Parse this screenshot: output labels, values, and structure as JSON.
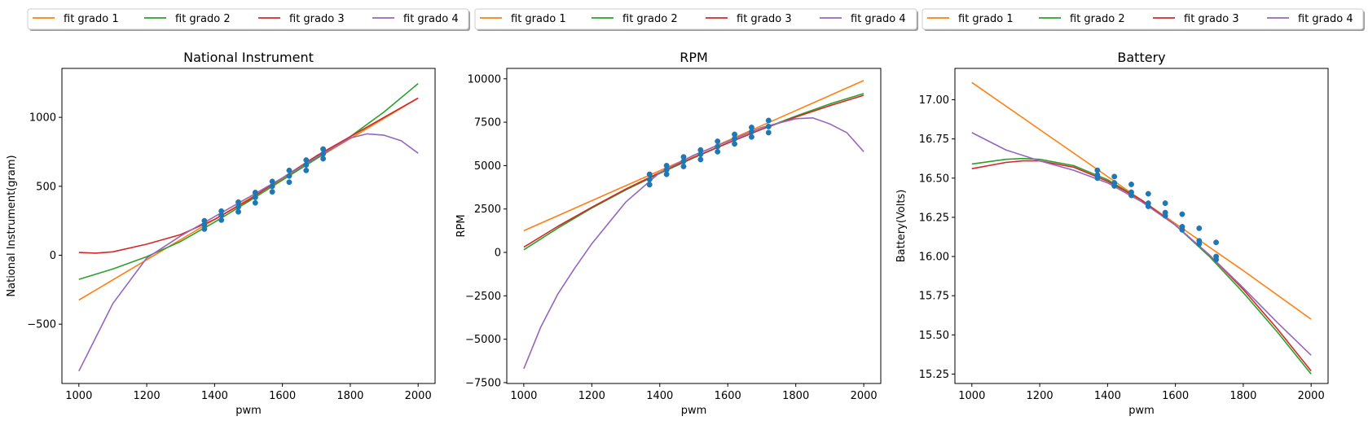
{
  "chart_data": [
    {
      "type": "line",
      "title": "National Instrument",
      "xlabel": "pwm",
      "ylabel": "National Instrument(gram)",
      "xlim": [
        950,
        2050
      ],
      "ylim": [
        -930,
        1355
      ],
      "xticks": [
        1000,
        1200,
        1400,
        1600,
        1800,
        2000
      ],
      "yticks": [
        -500,
        0,
        500,
        1000
      ],
      "grid": false,
      "legend": {
        "placement": "top",
        "columns": 4
      },
      "series": [
        {
          "name": "fit grado 1",
          "color": "#ff7f0e",
          "x": [
            1000,
            1200,
            1400,
            1600,
            1800,
            2000
          ],
          "y": [
            -325,
            -33,
            260,
            553,
            846,
            1140
          ]
        },
        {
          "name": "fit grado 2",
          "color": "#2ca02c",
          "x": [
            1000,
            1100,
            1200,
            1300,
            1400,
            1500,
            1600,
            1700,
            1800,
            1900,
            2000
          ],
          "y": [
            -175,
            -100,
            -10,
            100,
            240,
            390,
            545,
            700,
            860,
            1040,
            1245
          ]
        },
        {
          "name": "fit grado 3",
          "color": "#d62728",
          "x": [
            1000,
            1050,
            1100,
            1200,
            1300,
            1400,
            1500,
            1600,
            1700,
            1800,
            1900,
            2000
          ],
          "y": [
            20,
            15,
            25,
            80,
            150,
            260,
            400,
            560,
            720,
            860,
            1000,
            1140
          ]
        },
        {
          "name": "fit grado 4",
          "color": "#9467bd",
          "x": [
            1000,
            1100,
            1200,
            1300,
            1400,
            1500,
            1600,
            1700,
            1800,
            1850,
            1900,
            1950,
            2000
          ],
          "y": [
            -840,
            -350,
            -20,
            140,
            280,
            420,
            560,
            710,
            850,
            880,
            870,
            830,
            740
          ]
        },
        {
          "name": "",
          "kind": "scatter",
          "color": "#1f77b4",
          "x": [
            1370,
            1370,
            1370,
            1420,
            1420,
            1420,
            1470,
            1470,
            1470,
            1520,
            1520,
            1520,
            1570,
            1570,
            1570,
            1620,
            1620,
            1620,
            1670,
            1670,
            1670,
            1720,
            1720,
            1720
          ],
          "y": [
            190,
            220,
            250,
            255,
            290,
            320,
            315,
            350,
            385,
            380,
            420,
            455,
            460,
            500,
            535,
            530,
            575,
            615,
            615,
            655,
            690,
            700,
            735,
            770
          ]
        }
      ]
    },
    {
      "type": "line",
      "title": "RPM",
      "xlabel": "pwm",
      "ylabel": "RPM",
      "xlim": [
        950,
        2050
      ],
      "ylim": [
        -7550,
        10600
      ],
      "xticks": [
        1000,
        1200,
        1400,
        1600,
        1800,
        2000
      ],
      "yticks": [
        -7500,
        -5000,
        -2500,
        0,
        2500,
        5000,
        7500,
        10000
      ],
      "grid": false,
      "legend": {
        "placement": "top",
        "columns": 4
      },
      "series": [
        {
          "name": "fit grado 1",
          "color": "#ff7f0e",
          "x": [
            1000,
            1200,
            1400,
            1600,
            1800,
            2000
          ],
          "y": [
            1250,
            2980,
            4710,
            6440,
            8170,
            9900
          ]
        },
        {
          "name": "fit grado 2",
          "color": "#2ca02c",
          "x": [
            1000,
            1100,
            1200,
            1300,
            1400,
            1500,
            1600,
            1700,
            1800,
            1900,
            2000
          ],
          "y": [
            150,
            1400,
            2550,
            3600,
            4550,
            5450,
            6300,
            7100,
            7850,
            8550,
            9150
          ]
        },
        {
          "name": "fit grado 3",
          "color": "#d62728",
          "x": [
            1000,
            1100,
            1200,
            1300,
            1400,
            1500,
            1600,
            1700,
            1800,
            1900,
            2000
          ],
          "y": [
            300,
            1500,
            2600,
            3650,
            4600,
            5480,
            6300,
            7100,
            7800,
            8450,
            9050
          ]
        },
        {
          "name": "fit grado 4",
          "color": "#9467bd",
          "x": [
            1000,
            1050,
            1100,
            1150,
            1200,
            1300,
            1400,
            1500,
            1600,
            1700,
            1800,
            1850,
            1900,
            1950,
            2000
          ],
          "y": [
            -6700,
            -4300,
            -2400,
            -900,
            500,
            2900,
            4600,
            5600,
            6400,
            7200,
            7700,
            7750,
            7400,
            6900,
            5800
          ]
        },
        {
          "name": "",
          "kind": "scatter",
          "color": "#1f77b4",
          "x": [
            1370,
            1370,
            1370,
            1420,
            1420,
            1420,
            1470,
            1470,
            1470,
            1520,
            1520,
            1520,
            1570,
            1570,
            1570,
            1620,
            1620,
            1620,
            1670,
            1670,
            1670,
            1720,
            1720,
            1720
          ],
          "y": [
            3900,
            4200,
            4500,
            4500,
            4750,
            5000,
            4950,
            5250,
            5500,
            5350,
            5650,
            5900,
            5800,
            6100,
            6400,
            6250,
            6550,
            6800,
            6650,
            6950,
            7200,
            6900,
            7250,
            7600
          ]
        }
      ]
    },
    {
      "type": "line",
      "title": "Battery",
      "xlabel": "pwm",
      "ylabel": "Battery(Volts)",
      "xlim": [
        950,
        2050
      ],
      "ylim": [
        15.19,
        17.2
      ],
      "xticks": [
        1000,
        1200,
        1400,
        1600,
        1800,
        2000
      ],
      "yticks": [
        15.25,
        15.5,
        15.75,
        16.0,
        16.25,
        16.5,
        16.75,
        17.0
      ],
      "ytick_labels": [
        "15.25",
        "15.50",
        "15.75",
        "16.00",
        "16.25",
        "16.50",
        "16.75",
        "17.00"
      ],
      "grid": false,
      "legend": {
        "placement": "top",
        "columns": 4
      },
      "series": [
        {
          "name": "fit grado 1",
          "color": "#ff7f0e",
          "x": [
            1000,
            1200,
            1400,
            1600,
            1800,
            2000
          ],
          "y": [
            17.11,
            16.81,
            16.51,
            16.21,
            15.91,
            15.6
          ]
        },
        {
          "name": "fit grado 2",
          "color": "#2ca02c",
          "x": [
            1000,
            1100,
            1150,
            1200,
            1300,
            1400,
            1500,
            1600,
            1700,
            1800,
            1900,
            2000
          ],
          "y": [
            16.59,
            16.62,
            16.625,
            16.62,
            16.58,
            16.49,
            16.36,
            16.2,
            16.0,
            15.77,
            15.52,
            15.25
          ]
        },
        {
          "name": "fit grado 3",
          "color": "#d62728",
          "x": [
            1000,
            1100,
            1150,
            1200,
            1300,
            1400,
            1500,
            1600,
            1700,
            1800,
            1900,
            2000
          ],
          "y": [
            16.56,
            16.6,
            16.61,
            16.61,
            16.57,
            16.48,
            16.36,
            16.2,
            16.01,
            15.79,
            15.54,
            15.27
          ]
        },
        {
          "name": "fit grado 4",
          "color": "#9467bd",
          "x": [
            1000,
            1100,
            1200,
            1300,
            1400,
            1500,
            1600,
            1700,
            1800,
            1900,
            2000
          ],
          "y": [
            16.79,
            16.68,
            16.61,
            16.55,
            16.47,
            16.35,
            16.2,
            16.01,
            15.8,
            15.58,
            15.37
          ]
        },
        {
          "name": "",
          "kind": "scatter",
          "color": "#1f77b4",
          "x": [
            1370,
            1370,
            1370,
            1420,
            1420,
            1420,
            1470,
            1470,
            1470,
            1520,
            1520,
            1520,
            1570,
            1570,
            1570,
            1620,
            1620,
            1620,
            1670,
            1670,
            1670,
            1720,
            1720,
            1720
          ],
          "y": [
            16.5,
            16.52,
            16.55,
            16.45,
            16.47,
            16.51,
            16.39,
            16.41,
            16.46,
            16.32,
            16.34,
            16.4,
            16.26,
            16.28,
            16.34,
            16.17,
            16.19,
            16.27,
            16.08,
            16.1,
            16.18,
            15.98,
            16.0,
            16.09
          ]
        }
      ]
    }
  ]
}
